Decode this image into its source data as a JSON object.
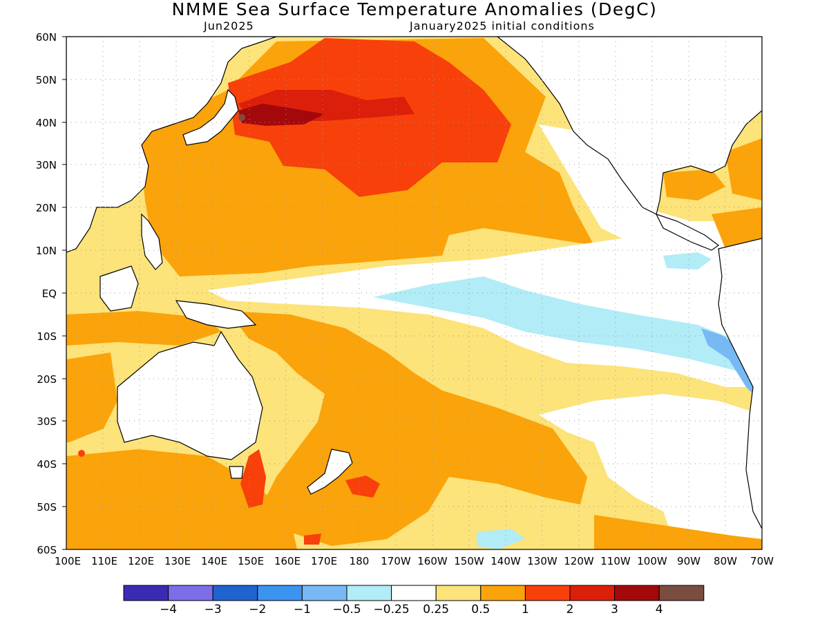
{
  "title": "NMME Sea Surface Temperature Anomalies (DegC)",
  "subtitle_left": "Jun2025",
  "subtitle_right": "January2025 initial conditions",
  "lat_labels": [
    "60N",
    "50N",
    "40N",
    "30N",
    "20N",
    "10N",
    "EQ",
    "10S",
    "20S",
    "30S",
    "40S",
    "50S",
    "60S"
  ],
  "lon_labels": [
    "100E",
    "110E",
    "120E",
    "130E",
    "140E",
    "150E",
    "160E",
    "170E",
    "180",
    "170W",
    "160W",
    "150W",
    "140W",
    "130W",
    "120W",
    "110W",
    "100W",
    "90W",
    "80W",
    "70W"
  ],
  "colorbar": {
    "colors": [
      "#3a2bb5",
      "#7d6de8",
      "#1f63d0",
      "#3b94f0",
      "#77b9f5",
      "#b1ecf7",
      "#ffffff",
      "#fce37a",
      "#fba30a",
      "#f8400b",
      "#dc1f0a",
      "#a3080b",
      "#7a4d40"
    ],
    "tick_labels": [
      "-4",
      "-3",
      "-2",
      "-1",
      "-0.5",
      "-0.25",
      "0.25",
      "0.5",
      "1",
      "2",
      "3",
      "4"
    ]
  },
  "colors": {
    "land": "#ffffff",
    "grid": "#999999",
    "coast": "#000000"
  }
}
